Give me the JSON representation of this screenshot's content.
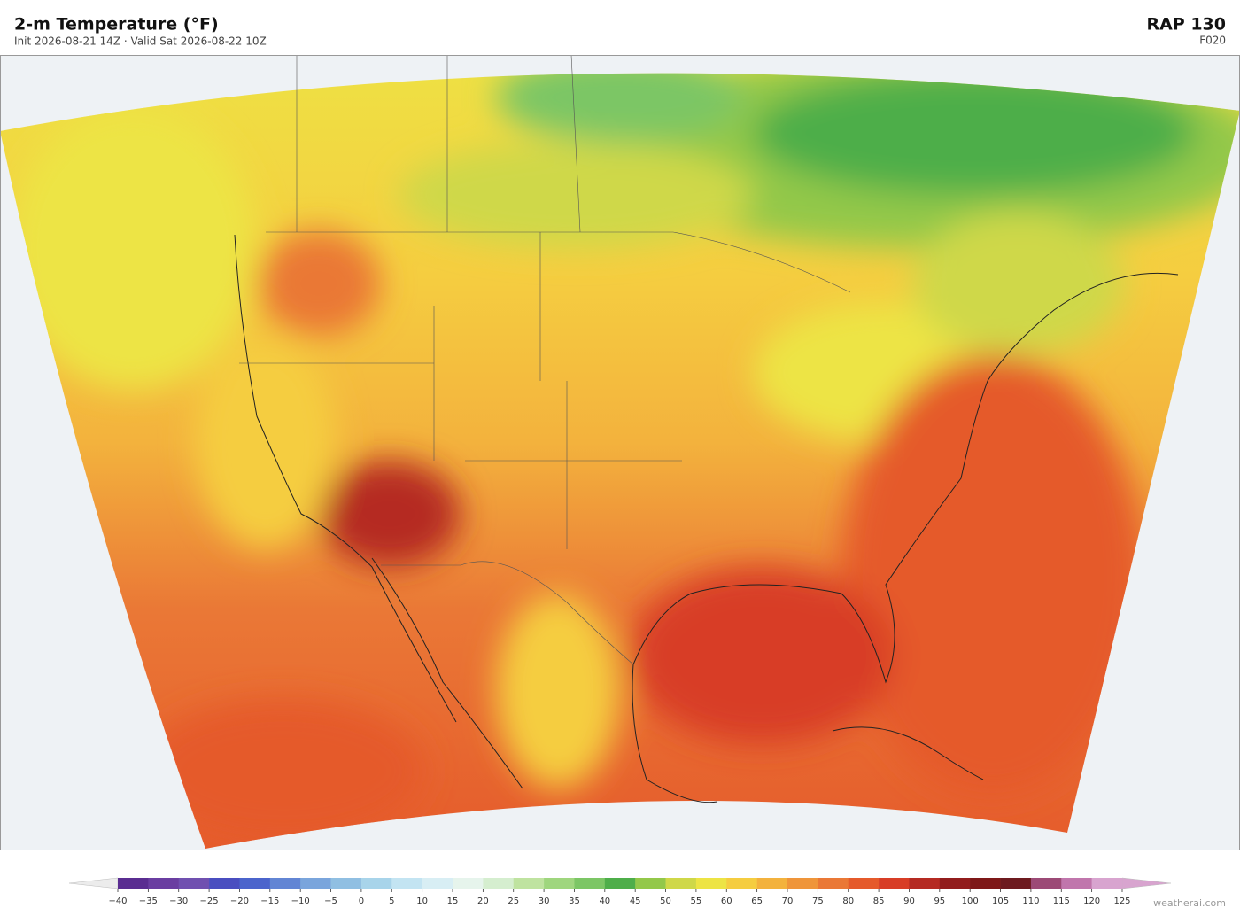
{
  "header": {
    "title": "2-m Temperature  (°F)",
    "subtitle": "Init 2026-08-21 14Z  ·  Valid Sat 2026-08-22 10Z",
    "model": "RAP  130",
    "forecast_hour": "F020"
  },
  "colorbar": {
    "lim": [
      -40,
      125
    ],
    "ticks": [
      {
        "value": -40,
        "label": "−40"
      },
      {
        "value": -35,
        "label": "−35"
      },
      {
        "value": -30,
        "label": "−30"
      },
      {
        "value": -25,
        "label": "−25"
      },
      {
        "value": -20,
        "label": "−20"
      },
      {
        "value": -15,
        "label": "−15"
      },
      {
        "value": -10,
        "label": "−10"
      },
      {
        "value": -5,
        "label": "−5"
      },
      0,
      5,
      10,
      15,
      20,
      25,
      30,
      35,
      40,
      45,
      50,
      55,
      60,
      65,
      70,
      75,
      80,
      85,
      90,
      95,
      100,
      105,
      110,
      115,
      120,
      125
    ],
    "colors": [
      "#5a2d91",
      "#6a3ea1",
      "#7050b0",
      "#4a4ec0",
      "#4b64cc",
      "#6285d4",
      "#7aa5dc",
      "#90bfe2",
      "#a8d4ea",
      "#c3e4f2",
      "#d8eef4",
      "#e6f4ec",
      "#d5eecf",
      "#bfe3a0",
      "#9fd67e",
      "#7cc665",
      "#4eae4a",
      "#93c84a",
      "#cfd848",
      "#ede444",
      "#f5cd40",
      "#f3b23d",
      "#ef953a",
      "#ea7836",
      "#e55a2b",
      "#d83d26",
      "#b52a22",
      "#921c1c",
      "#7e1818",
      "#6d1a1f",
      "#9c4a76",
      "#c076ac",
      "#d8a4cf"
    ],
    "under_color": "#ececec",
    "over_color": "#d8a4cf"
  },
  "footer": {
    "credit": "weatherai.com"
  }
}
